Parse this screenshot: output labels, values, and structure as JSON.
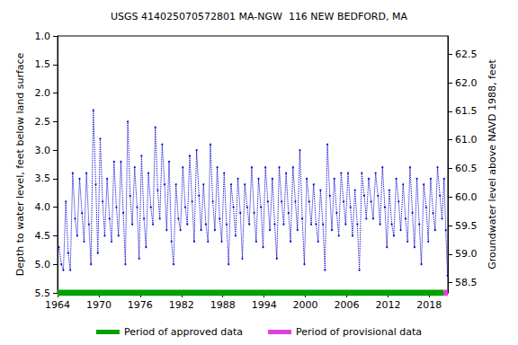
{
  "chart_data": {
    "type": "line",
    "title": "USGS 414025070572801 MA-NGW  116 NEW BEDFORD, MA",
    "y_label": "Depth to water level, feet below land surface",
    "y2_label": "Groundwater level above NAVD 1988, feet",
    "color": "#0000cc",
    "marker": "point",
    "line_style": "dotted",
    "grid": false,
    "legend": "bottom",
    "xlim": [
      1964,
      2020.7
    ],
    "xticks": [
      1964,
      1970,
      1976,
      1982,
      1988,
      1994,
      2000,
      2006,
      2012,
      2018
    ],
    "ylim": [
      5.5,
      1.0
    ],
    "yticks": [
      {
        "value": 1,
        "label": "1.0"
      },
      1.5,
      {
        "value": 2,
        "label": "2.0"
      },
      2.5,
      {
        "value": 3,
        "label": "3.0"
      },
      3.5,
      {
        "value": 4,
        "label": "4.0"
      },
      4.5,
      {
        "value": 5,
        "label": "5.0"
      },
      5.5
    ],
    "y2lim": [
      58.32,
      62.82
    ],
    "y2ticks": [
      58.5,
      {
        "value": 59,
        "label": "59.0"
      },
      59.5,
      {
        "value": 60,
        "label": "60.0"
      },
      60.5,
      {
        "value": 61,
        "label": "61.0"
      },
      61.5,
      {
        "value": 62,
        "label": "62.0"
      },
      62.5
    ],
    "x": [
      1964.2,
      1964.55,
      1964.85,
      1965.2,
      1965.55,
      1965.85,
      1966.2,
      1966.55,
      1966.85,
      1967.2,
      1967.55,
      1967.85,
      1968.2,
      1968.55,
      1968.85,
      1969.2,
      1969.55,
      1969.85,
      1970.2,
      1970.55,
      1970.85,
      1971.2,
      1971.55,
      1971.85,
      1972.2,
      1972.55,
      1972.85,
      1973.2,
      1973.55,
      1973.85,
      1974.2,
      1974.55,
      1974.85,
      1975.2,
      1975.55,
      1975.85,
      1976.2,
      1976.55,
      1976.85,
      1977.2,
      1977.55,
      1977.85,
      1978.2,
      1978.55,
      1978.85,
      1979.2,
      1979.55,
      1979.85,
      1980.2,
      1980.55,
      1980.85,
      1981.2,
      1981.55,
      1981.85,
      1982.2,
      1982.55,
      1982.85,
      1983.2,
      1983.55,
      1983.85,
      1984.2,
      1984.55,
      1984.85,
      1985.2,
      1985.55,
      1985.85,
      1986.2,
      1986.55,
      1986.85,
      1987.2,
      1987.55,
      1987.85,
      1988.2,
      1988.55,
      1988.85,
      1989.2,
      1989.55,
      1989.85,
      1990.2,
      1990.55,
      1990.85,
      1991.2,
      1991.55,
      1991.85,
      1992.2,
      1992.55,
      1992.85,
      1993.2,
      1993.55,
      1993.85,
      1994.2,
      1994.55,
      1994.85,
      1995.2,
      1995.55,
      1995.85,
      1996.2,
      1996.55,
      1996.85,
      1997.2,
      1997.55,
      1997.85,
      1998.2,
      1998.55,
      1998.85,
      1999.2,
      1999.55,
      1999.85,
      2000.2,
      2000.55,
      2000.85,
      2001.2,
      2001.55,
      2001.85,
      2002.2,
      2002.55,
      2002.85,
      2003.2,
      2003.55,
      2003.85,
      2004.2,
      2004.55,
      2004.85,
      2005.2,
      2005.55,
      2005.85,
      2006.2,
      2006.55,
      2006.85,
      2007.2,
      2007.55,
      2007.85,
      2008.2,
      2008.55,
      2008.85,
      2009.2,
      2009.55,
      2009.85,
      2010.2,
      2010.55,
      2010.85,
      2011.2,
      2011.55,
      2011.85,
      2012.2,
      2012.55,
      2012.85,
      2013.2,
      2013.55,
      2013.85,
      2014.2,
      2014.55,
      2014.85,
      2015.2,
      2015.55,
      2015.85,
      2016.2,
      2016.55,
      2016.85,
      2017.2,
      2017.55,
      2017.85,
      2018.2,
      2018.55,
      2018.85,
      2019.2,
      2019.55,
      2019.85,
      2020.15,
      2020.4,
      2020.65
    ],
    "values": [
      4.7,
      5.0,
      5.1,
      3.9,
      4.8,
      5.1,
      3.4,
      4.2,
      4.5,
      3.5,
      4.1,
      4.6,
      3.4,
      4.3,
      5.0,
      2.3,
      3.6,
      4.8,
      2.8,
      3.9,
      4.5,
      3.5,
      4.2,
      4.6,
      3.2,
      4.0,
      4.5,
      3.2,
      4.1,
      5.0,
      2.5,
      3.8,
      4.3,
      3.3,
      4.0,
      4.9,
      3.1,
      4.2,
      4.7,
      3.4,
      4.0,
      4.3,
      2.6,
      3.7,
      4.2,
      2.9,
      3.6,
      4.4,
      3.2,
      4.6,
      5.0,
      3.6,
      4.2,
      4.4,
      3.3,
      4.0,
      4.3,
      3.1,
      3.9,
      4.6,
      3.0,
      3.8,
      4.4,
      3.6,
      4.3,
      4.6,
      2.9,
      3.9,
      4.4,
      3.3,
      4.2,
      4.6,
      3.4,
      4.3,
      5.0,
      3.6,
      4.0,
      4.5,
      3.5,
      4.1,
      4.9,
      3.6,
      4.0,
      4.3,
      3.3,
      4.1,
      4.6,
      3.5,
      4.0,
      4.7,
      3.3,
      3.9,
      4.4,
      3.5,
      4.3,
      4.9,
      3.3,
      3.9,
      4.3,
      3.4,
      4.1,
      4.6,
      3.3,
      3.9,
      4.4,
      3.0,
      4.2,
      5.0,
      3.5,
      3.9,
      4.3,
      3.6,
      4.3,
      4.6,
      3.7,
      4.3,
      5.1,
      2.9,
      3.8,
      4.4,
      3.5,
      4.1,
      4.5,
      3.4,
      3.9,
      4.3,
      3.4,
      4.0,
      4.5,
      3.7,
      4.3,
      5.1,
      3.4,
      3.8,
      4.2,
      3.5,
      3.9,
      4.2,
      3.4,
      3.8,
      4.3,
      3.3,
      4.0,
      4.7,
      3.7,
      4.3,
      4.5,
      3.5,
      3.9,
      4.4,
      3.6,
      4.2,
      4.6,
      3.3,
      4.1,
      4.7,
      3.5,
      4.3,
      5.0,
      3.6,
      4.0,
      4.6,
      3.5,
      4.1,
      4.4,
      3.3,
      3.8,
      4.2,
      3.5,
      4.4,
      5.2
    ],
    "periods": [
      {
        "name": "Period of approved data",
        "color": "#00a000",
        "start": 1964,
        "end": 2020.1
      },
      {
        "name": "Period of provisional data",
        "color": "#e040e0",
        "start": 2020.1,
        "end": 2020.7
      }
    ]
  }
}
